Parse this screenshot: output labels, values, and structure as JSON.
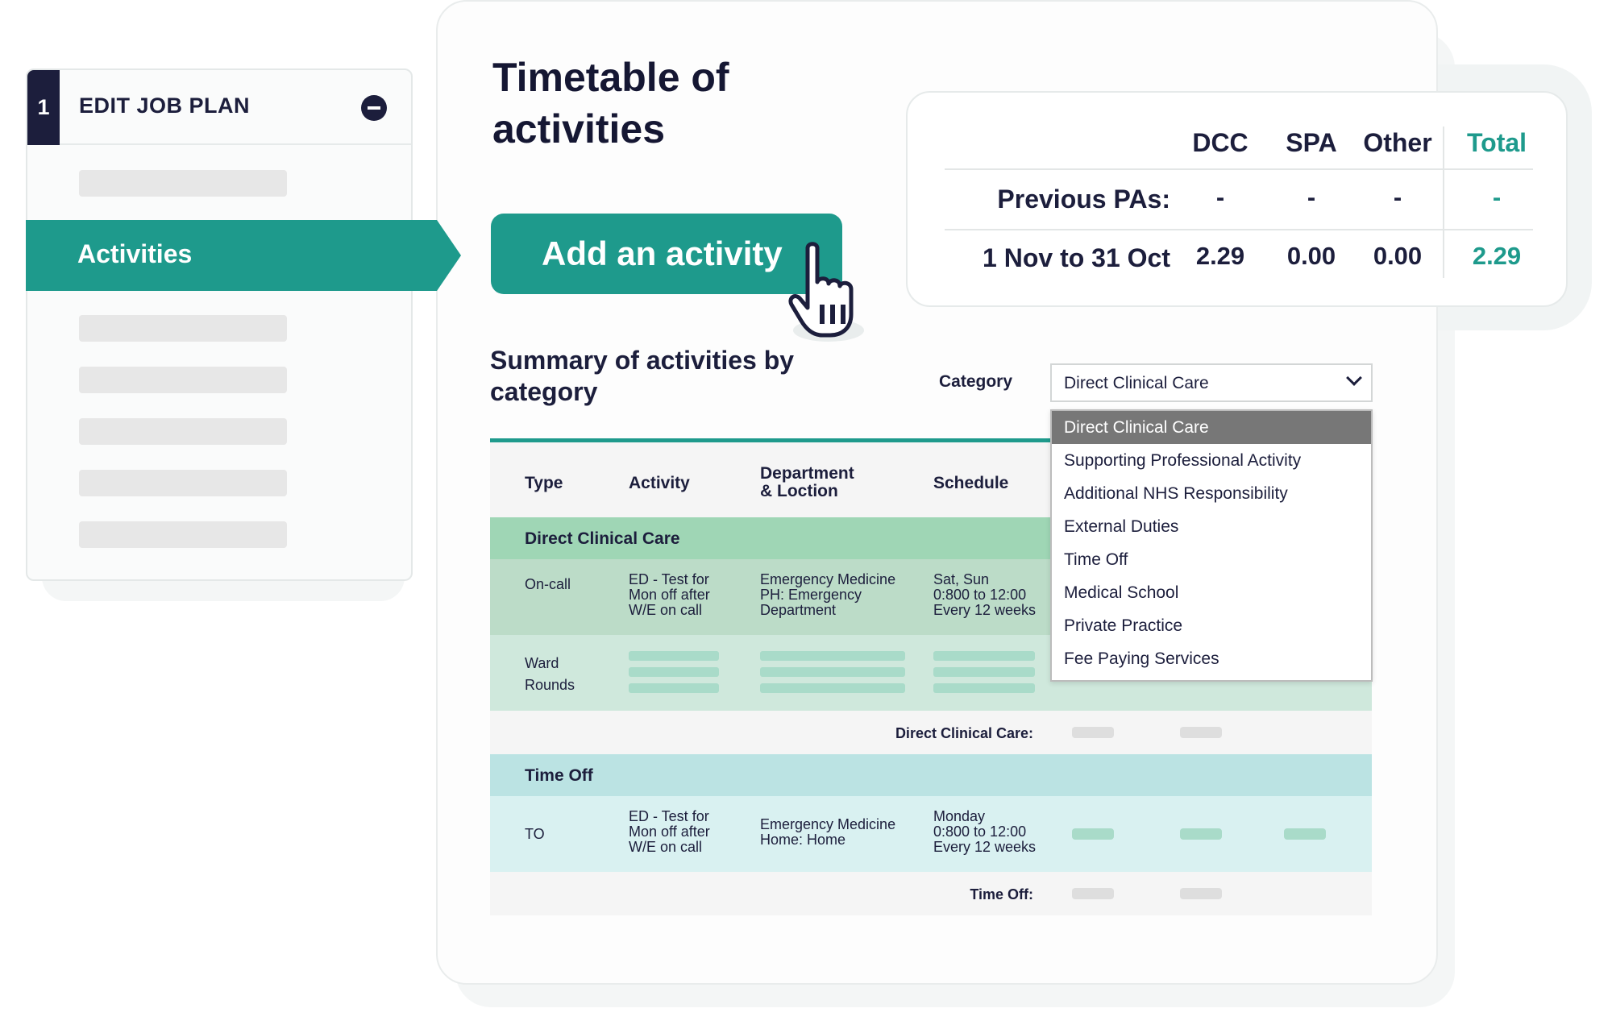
{
  "sidebar": {
    "step_number": "1",
    "title": "EDIT JOB PLAN",
    "active_item": "Activities"
  },
  "page": {
    "title": "Timetable of activities",
    "add_button_label": "Add an activity"
  },
  "pa_summary": {
    "columns": [
      "DCC",
      "SPA",
      "Other",
      "Total"
    ],
    "rows": [
      {
        "label": "Previous PAs:",
        "values": [
          "-",
          "-",
          "-",
          "-"
        ]
      },
      {
        "label": "1 Nov to 31 Oct",
        "values": [
          "2.29",
          "0.00",
          "0.00",
          "2.29"
        ]
      }
    ]
  },
  "summary": {
    "title": "Summary of activities by category",
    "category_label": "Category",
    "category_selected": "Direct Clinical Care",
    "category_options": [
      "Direct Clinical Care",
      "Supporting Professional Activity",
      "Additional NHS Responsibility",
      "External Duties",
      "Time Off",
      "Medical School",
      "Private Practice",
      "Fee Paying Services"
    ]
  },
  "table": {
    "headers": {
      "type": "Type",
      "activity": "Activity",
      "department_1": "Department",
      "department_2": "& Loction",
      "schedule": "Schedule"
    },
    "groups": [
      {
        "name": "Direct Clinical Care",
        "rows": [
          {
            "type": "On-call",
            "activity": [
              "ED - Test for",
              "Mon off after",
              "W/E on call"
            ],
            "department": [
              "Emergency Medicine",
              "PH: Emergency",
              "Department"
            ],
            "schedule": [
              "Sat, Sun",
              "0:800 to 12:00",
              "Every 12 weeks"
            ]
          },
          {
            "type": [
              "Ward",
              "Rounds"
            ]
          }
        ],
        "total_label": "Direct Clinical Care:"
      },
      {
        "name": "Time Off",
        "rows": [
          {
            "type": "TO",
            "activity": [
              "ED - Test for",
              "Mon off after",
              "W/E on call"
            ],
            "department": [
              "Emergency Medicine",
              "Home: Home"
            ],
            "schedule": [
              "Monday",
              "0:800 to 12:00",
              "Every 12 weeks"
            ]
          }
        ],
        "total_label": "Time Off:"
      }
    ]
  },
  "colors": {
    "brand_teal": "#1e9a8c",
    "navy": "#1c1e3c",
    "dcc_header": "#9fd6b5",
    "dcc_row": "#bcdcc8",
    "timeoff_header": "#bbe3e3",
    "timeoff_row": "#d9f1f1"
  }
}
